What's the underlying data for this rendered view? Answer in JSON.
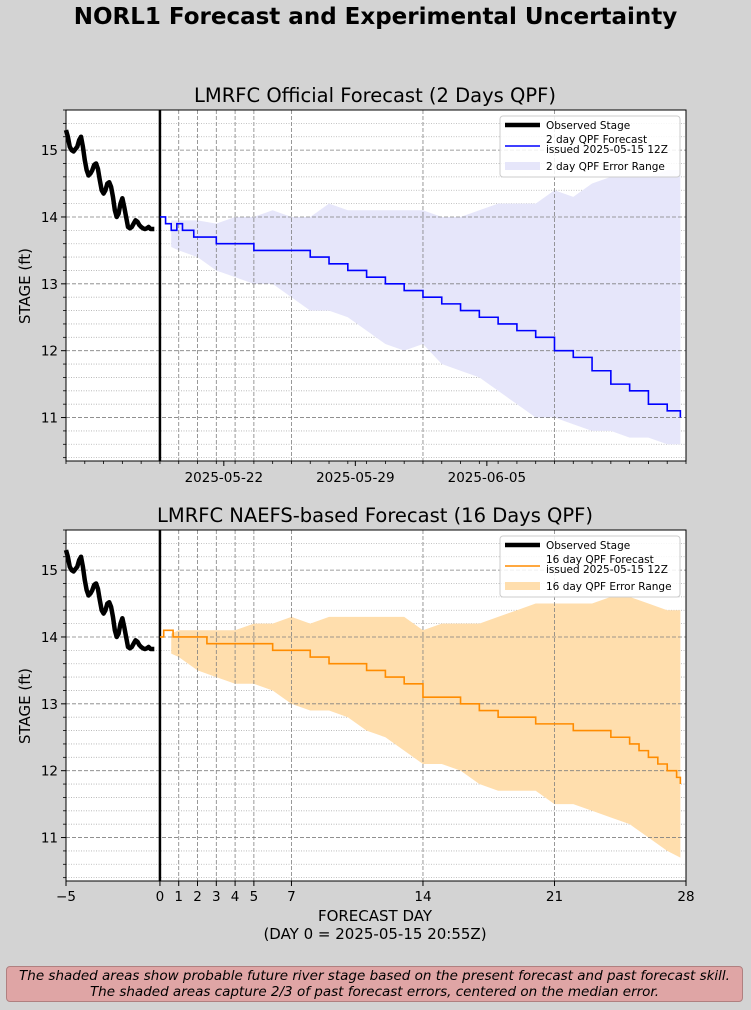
{
  "suptitle": "NORL1 Forecast and Experimental Uncertainty",
  "footer": {
    "line1": "The shaded areas show probable future river stage based on the present forecast and past forecast skill.",
    "line2": "The shaded areas capture 2/3 of past forecast errors, centered on the median error."
  },
  "chart_data": [
    {
      "type": "line",
      "title": "LMRFC Official Forecast (2 Days QPF)",
      "xlabel": "",
      "ylabel": "STAGE (ft)",
      "xlim": [
        -5,
        28
      ],
      "ylim": [
        10.35,
        15.6
      ],
      "yticks": [
        11,
        12,
        13,
        14,
        15
      ],
      "xtick_labels": [
        {
          "x": 3.4,
          "label": "2025-05-22"
        },
        {
          "x": 10.4,
          "label": "2025-05-29"
        },
        {
          "x": 17.4,
          "label": "2025-06-05"
        }
      ],
      "vlines_dashed": [
        1,
        2,
        3,
        4,
        5,
        7,
        14,
        21
      ],
      "day0_line": 0,
      "grid": true,
      "legend_position": "top-right",
      "colors": {
        "forecast": "#0000ff",
        "band": "#e6e6fa",
        "observed": "#000000"
      },
      "legend": [
        {
          "label": "Observed Stage",
          "kind": "thick-line"
        },
        {
          "label": "2 day QPF Forecast\nissued 2025-05-15 12Z",
          "kind": "line"
        },
        {
          "label": "2 day QPF Error Range",
          "kind": "patch"
        }
      ],
      "series": [
        {
          "name": "Observed Stage",
          "x": [
            -5,
            -4.9,
            -4.8,
            -4.7,
            -4.6,
            -4.4,
            -4.3,
            -4.2,
            -4.1,
            -4,
            -3.9,
            -3.8,
            -3.7,
            -3.6,
            -3.5,
            -3.4,
            -3.3,
            -3.2,
            -3.1,
            -3,
            -2.9,
            -2.8,
            -2.7,
            -2.6,
            -2.5,
            -2.4,
            -2.3,
            -2.2,
            -2.1,
            -2,
            -1.9,
            -1.8,
            -1.7,
            -1.6,
            -1.5,
            -1.4,
            -1.3,
            -1.2,
            -1.1,
            -1,
            -0.9,
            -0.8,
            -0.7,
            -0.6,
            -0.5,
            -0.4,
            -0.3
          ],
          "y": [
            15.3,
            15.2,
            15.05,
            15.0,
            14.98,
            15.05,
            15.15,
            15.2,
            15.05,
            14.85,
            14.7,
            14.62,
            14.65,
            14.7,
            14.78,
            14.8,
            14.72,
            14.55,
            14.4,
            14.35,
            14.4,
            14.5,
            14.52,
            14.45,
            14.3,
            14.1,
            14.0,
            14.05,
            14.2,
            14.28,
            14.15,
            14.0,
            13.85,
            13.83,
            13.85,
            13.9,
            13.95,
            13.93,
            13.88,
            13.85,
            13.83,
            13.82,
            13.83,
            13.85,
            13.82,
            13.82,
            13.82
          ]
        },
        {
          "name": "2 day QPF Forecast issued 2025-05-15 12Z",
          "x": [
            0,
            0.3,
            0.6,
            0.9,
            1.2,
            1.5,
            1.8,
            2.5,
            3,
            4,
            5,
            6,
            7,
            8,
            9,
            10,
            11,
            12,
            13,
            14,
            15,
            16,
            17,
            18,
            19,
            20,
            21,
            22,
            23,
            24,
            25,
            26,
            27,
            27.7
          ],
          "y": [
            14.0,
            13.9,
            13.8,
            13.9,
            13.8,
            13.8,
            13.7,
            13.7,
            13.6,
            13.6,
            13.5,
            13.5,
            13.5,
            13.4,
            13.3,
            13.2,
            13.1,
            13.0,
            12.9,
            12.8,
            12.7,
            12.6,
            12.5,
            12.4,
            12.3,
            12.2,
            12.0,
            11.9,
            11.7,
            11.5,
            11.4,
            11.2,
            11.1,
            11.0
          ]
        },
        {
          "name": "2 day QPF Error Range (upper)",
          "x": [
            0.6,
            1,
            2,
            3,
            4,
            5,
            6,
            7,
            8,
            9,
            10,
            11,
            12,
            13,
            14,
            15,
            16,
            17,
            18,
            19,
            20,
            21,
            22,
            23,
            24,
            25,
            26,
            27,
            27.7
          ],
          "y": [
            13.95,
            13.95,
            13.95,
            13.9,
            14.0,
            14.0,
            14.1,
            14.0,
            14.0,
            14.2,
            14.1,
            14.1,
            14.1,
            14.1,
            14.1,
            14.0,
            14.0,
            14.1,
            14.2,
            14.2,
            14.2,
            14.4,
            14.3,
            14.5,
            14.6,
            14.6,
            14.6,
            14.7,
            14.7
          ]
        },
        {
          "name": "2 day QPF Error Range (lower)",
          "x": [
            0.6,
            1,
            2,
            3,
            4,
            5,
            6,
            7,
            8,
            9,
            10,
            11,
            12,
            13,
            14,
            15,
            16,
            17,
            18,
            19,
            20,
            21,
            22,
            23,
            24,
            25,
            26,
            27,
            27.7
          ],
          "y": [
            13.55,
            13.5,
            13.4,
            13.2,
            13.1,
            13.0,
            13.0,
            12.8,
            12.6,
            12.6,
            12.5,
            12.3,
            12.1,
            12.0,
            12.1,
            11.8,
            11.7,
            11.6,
            11.4,
            11.2,
            11.0,
            11.0,
            10.9,
            10.8,
            10.8,
            10.7,
            10.7,
            10.6,
            10.6
          ]
        }
      ]
    },
    {
      "type": "line",
      "title": "LMRFC NAEFS-based Forecast (16 Days QPF)",
      "xlabel": "FORECAST DAY\n(DAY 0 = 2025-05-15 20:55Z)",
      "xlabel_line1": "FORECAST DAY",
      "xlabel_line2": "(DAY 0 = 2025-05-15 20:55Z)",
      "ylabel": "STAGE (ft)",
      "xlim": [
        -5,
        28
      ],
      "ylim": [
        10.35,
        15.6
      ],
      "yticks": [
        11,
        12,
        13,
        14,
        15
      ],
      "xticks": [
        -5,
        0,
        1,
        2,
        3,
        4,
        5,
        7,
        14,
        21,
        28
      ],
      "xtick_labels": [
        "−5",
        "0",
        "1",
        "2",
        "3",
        "4",
        "5",
        "7",
        "14",
        "21",
        "28"
      ],
      "vlines_dashed": [
        1,
        2,
        3,
        4,
        5,
        7,
        14,
        21
      ],
      "day0_line": 0,
      "grid": true,
      "legend_position": "top-right",
      "colors": {
        "forecast": "#ff8c00",
        "band": "#ffdead",
        "observed": "#000000"
      },
      "legend": [
        {
          "label": "Observed Stage",
          "kind": "thick-line"
        },
        {
          "label": "16 day QPF Forecast\nissued 2025-05-15 12Z",
          "kind": "line"
        },
        {
          "label": "16 day QPF Error Range",
          "kind": "patch"
        }
      ],
      "series": [
        {
          "name": "Observed Stage",
          "x": [
            -5,
            -4.9,
            -4.8,
            -4.7,
            -4.6,
            -4.4,
            -4.3,
            -4.2,
            -4.1,
            -4,
            -3.9,
            -3.8,
            -3.7,
            -3.6,
            -3.5,
            -3.4,
            -3.3,
            -3.2,
            -3.1,
            -3,
            -2.9,
            -2.8,
            -2.7,
            -2.6,
            -2.5,
            -2.4,
            -2.3,
            -2.2,
            -2.1,
            -2,
            -1.9,
            -1.8,
            -1.7,
            -1.6,
            -1.5,
            -1.4,
            -1.3,
            -1.2,
            -1.1,
            -1,
            -0.9,
            -0.8,
            -0.7,
            -0.6,
            -0.5,
            -0.4,
            -0.3
          ],
          "y": [
            15.3,
            15.2,
            15.05,
            15.0,
            14.98,
            15.05,
            15.15,
            15.2,
            15.05,
            14.85,
            14.7,
            14.62,
            14.65,
            14.7,
            14.78,
            14.8,
            14.72,
            14.55,
            14.4,
            14.35,
            14.4,
            14.5,
            14.52,
            14.45,
            14.3,
            14.1,
            14.0,
            14.05,
            14.2,
            14.28,
            14.15,
            14.0,
            13.85,
            13.83,
            13.85,
            13.9,
            13.95,
            13.93,
            13.88,
            13.85,
            13.83,
            13.82,
            13.83,
            13.85,
            13.82,
            13.82,
            13.82
          ]
        },
        {
          "name": "16 day QPF Forecast issued 2025-05-15 12Z",
          "x": [
            0,
            0.2,
            0.5,
            0.7,
            1,
            2,
            2.5,
            3,
            4,
            5,
            6,
            7,
            8,
            9,
            10,
            11,
            12,
            13,
            14,
            15,
            16,
            17,
            18,
            19,
            20,
            21,
            22,
            23,
            24,
            25,
            25.5,
            26,
            26.5,
            27,
            27.5,
            27.7
          ],
          "y": [
            14.0,
            14.1,
            14.1,
            14.0,
            14.0,
            14.0,
            13.9,
            13.9,
            13.9,
            13.9,
            13.8,
            13.8,
            13.7,
            13.6,
            13.6,
            13.5,
            13.4,
            13.3,
            13.1,
            13.1,
            13.0,
            12.9,
            12.8,
            12.8,
            12.7,
            12.7,
            12.6,
            12.6,
            12.5,
            12.4,
            12.3,
            12.2,
            12.1,
            12.0,
            11.9,
            11.8
          ]
        },
        {
          "name": "16 day QPF Error Range (upper)",
          "x": [
            0.6,
            1,
            2,
            3,
            4,
            5,
            6,
            7,
            8,
            9,
            10,
            11,
            12,
            13,
            14,
            15,
            16,
            17,
            18,
            19,
            20,
            21,
            22,
            23,
            24,
            25,
            26,
            27,
            27.7
          ],
          "y": [
            14.05,
            14.1,
            14.1,
            14.1,
            14.1,
            14.2,
            14.2,
            14.3,
            14.2,
            14.3,
            14.3,
            14.3,
            14.3,
            14.3,
            14.1,
            14.2,
            14.2,
            14.2,
            14.3,
            14.4,
            14.5,
            14.5,
            14.5,
            14.5,
            14.6,
            14.6,
            14.5,
            14.4,
            14.4
          ]
        },
        {
          "name": "16 day QPF Error Range (lower)",
          "x": [
            0.6,
            1,
            2,
            3,
            4,
            5,
            6,
            7,
            8,
            9,
            10,
            11,
            12,
            13,
            14,
            15,
            16,
            17,
            18,
            19,
            20,
            21,
            22,
            23,
            24,
            25,
            26,
            27,
            27.7
          ],
          "y": [
            13.75,
            13.7,
            13.5,
            13.4,
            13.3,
            13.3,
            13.2,
            13.0,
            12.9,
            12.9,
            12.8,
            12.6,
            12.5,
            12.3,
            12.1,
            12.1,
            12.0,
            11.8,
            11.7,
            11.7,
            11.7,
            11.5,
            11.5,
            11.4,
            11.3,
            11.2,
            11.0,
            10.8,
            10.7
          ]
        }
      ]
    }
  ]
}
